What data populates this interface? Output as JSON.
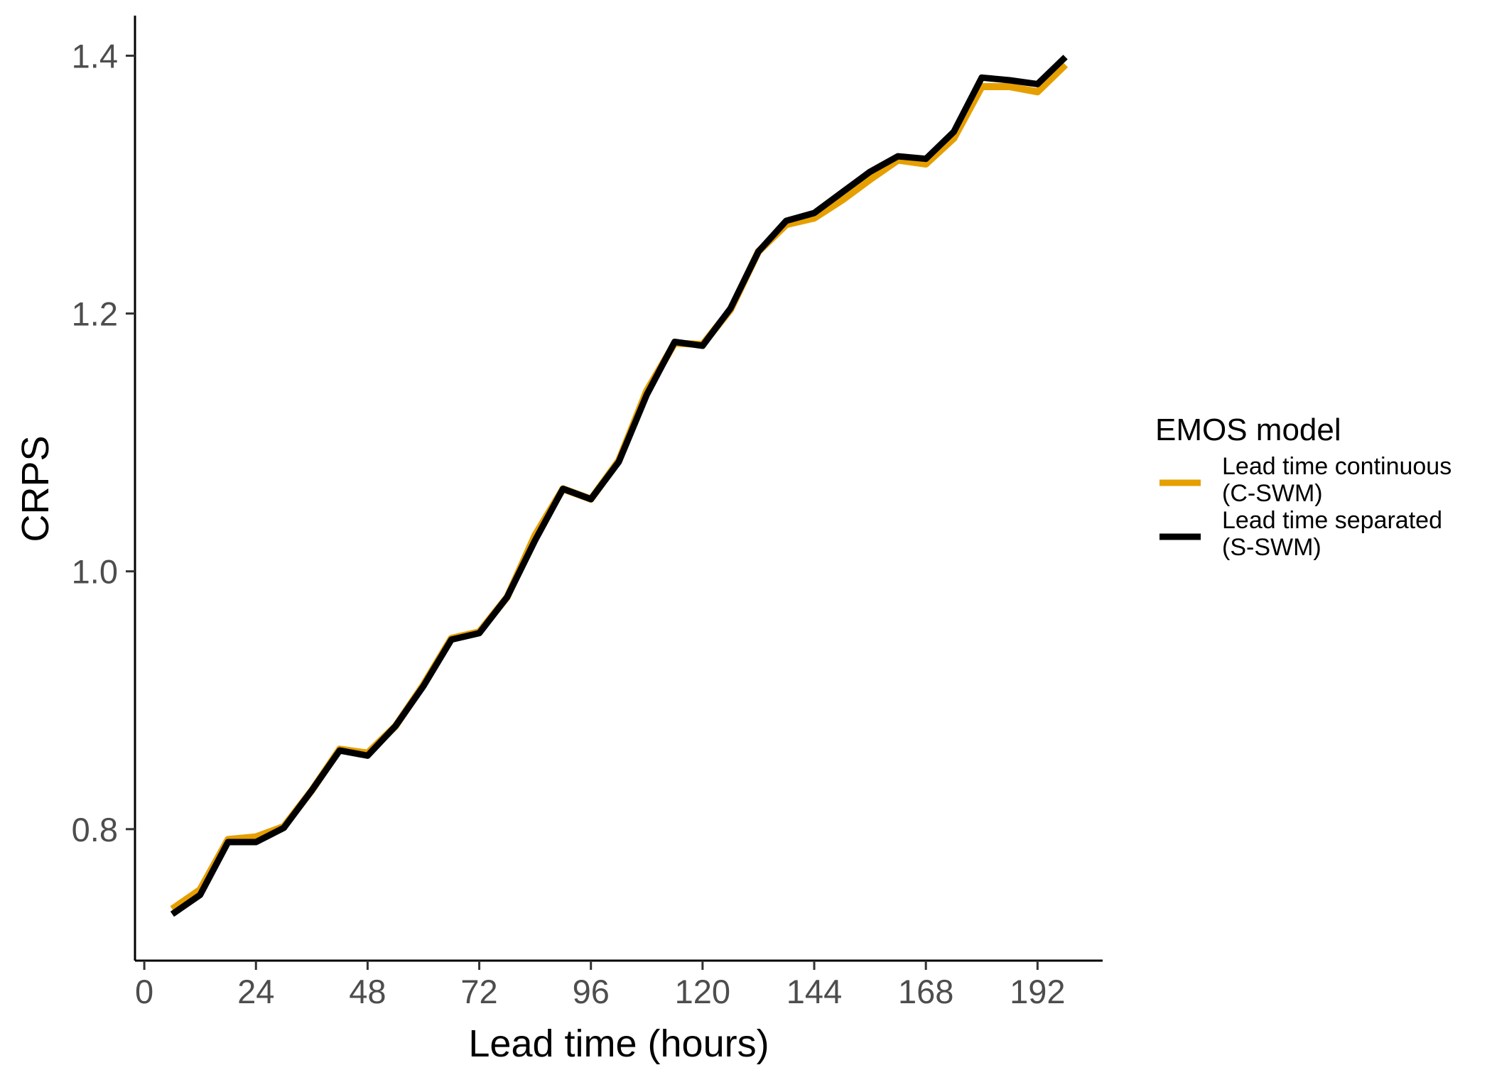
{
  "chart_data": {
    "type": "line",
    "xlabel": "Lead time (hours)",
    "ylabel": "CRPS",
    "x_ticks": [
      0,
      24,
      48,
      72,
      96,
      120,
      144,
      168,
      192
    ],
    "y_ticks": [
      0.8,
      1.0,
      1.2,
      1.4
    ],
    "y_tick_labels": [
      "0.8",
      "1.0",
      "1.2",
      "1.4"
    ],
    "xlim": [
      -2,
      206
    ],
    "ylim": [
      0.698,
      1.43
    ],
    "grid": false,
    "legend": {
      "title": "EMOS model",
      "position": "right"
    },
    "x": [
      6,
      12,
      18,
      24,
      30,
      36,
      42,
      48,
      54,
      60,
      66,
      72,
      78,
      84,
      90,
      96,
      102,
      108,
      114,
      120,
      126,
      132,
      138,
      144,
      150,
      156,
      162,
      168,
      174,
      180,
      186,
      192,
      198
    ],
    "series": [
      {
        "name": "Lead time continuous (C-SWM)",
        "name_lines": [
          "Lead time continuous",
          "(C-SWM)"
        ],
        "color": "#E69F00",
        "values": [
          0.738,
          0.753,
          0.792,
          0.794,
          0.802,
          0.83,
          0.862,
          0.859,
          0.88,
          0.912,
          0.948,
          0.953,
          0.98,
          1.028,
          1.064,
          1.056,
          1.086,
          1.14,
          1.177,
          1.176,
          1.203,
          1.248,
          1.269,
          1.274,
          1.288,
          1.304,
          1.319,
          1.316,
          1.336,
          1.376,
          1.376,
          1.372,
          1.393
        ]
      },
      {
        "name": "Lead time separated (S-SWM)",
        "name_lines": [
          "Lead time separated",
          "(S-SWM)"
        ],
        "color": "#000000",
        "values": [
          0.734,
          0.749,
          0.79,
          0.79,
          0.801,
          0.83,
          0.861,
          0.857,
          0.88,
          0.911,
          0.947,
          0.952,
          0.98,
          1.024,
          1.064,
          1.056,
          1.085,
          1.137,
          1.178,
          1.175,
          1.204,
          1.248,
          1.272,
          1.278,
          1.294,
          1.31,
          1.322,
          1.32,
          1.341,
          1.383,
          1.381,
          1.378,
          1.399
        ]
      }
    ]
  }
}
